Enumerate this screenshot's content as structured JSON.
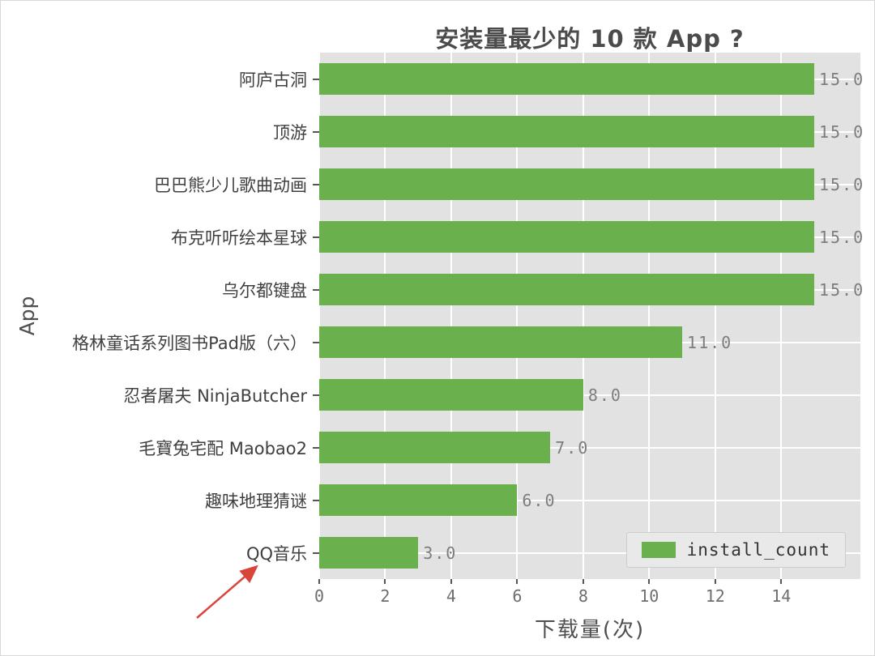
{
  "figure": {
    "title": "安装量最少的 10 款 App ?",
    "ylabel": "App",
    "xlabel": "下载量(次)",
    "legend": {
      "label": "install_count"
    },
    "annotation": {
      "type": "red-arrow",
      "points_to": "QQ音乐"
    }
  },
  "chart_data": {
    "type": "bar",
    "orientation": "horizontal",
    "title": "安装量最少的 10 款 App ?",
    "xlabel": "下载量(次)",
    "ylabel": "App",
    "categories": [
      "阿庐古洞",
      "顶游",
      "巴巴熊少儿歌曲动画",
      "布克听听绘本星球",
      "乌尔都键盘",
      "格林童话系列图书Pad版（六）",
      "忍者屠夫 NinjaButcher",
      "毛寶兔宅配 Maobao2",
      "趣味地理猜谜",
      "QQ音乐"
    ],
    "values": [
      15.0,
      15.0,
      15.0,
      15.0,
      15.0,
      11.0,
      8.0,
      7.0,
      6.0,
      3.0
    ],
    "value_labels": [
      "15.0",
      "15.0",
      "15.0",
      "15.0",
      "15.0",
      "11.0",
      "8.0",
      "7.0",
      "6.0",
      "3.0"
    ],
    "series_name": "install_count",
    "xticks": [
      0,
      2,
      4,
      6,
      8,
      10,
      12,
      14
    ],
    "xlim": [
      0,
      16.4
    ],
    "grid": true,
    "legend_position": "lower right",
    "bar_color": "#6ab04c",
    "plot_bg": "#e2e2e2",
    "grid_color": "#ffffff"
  }
}
